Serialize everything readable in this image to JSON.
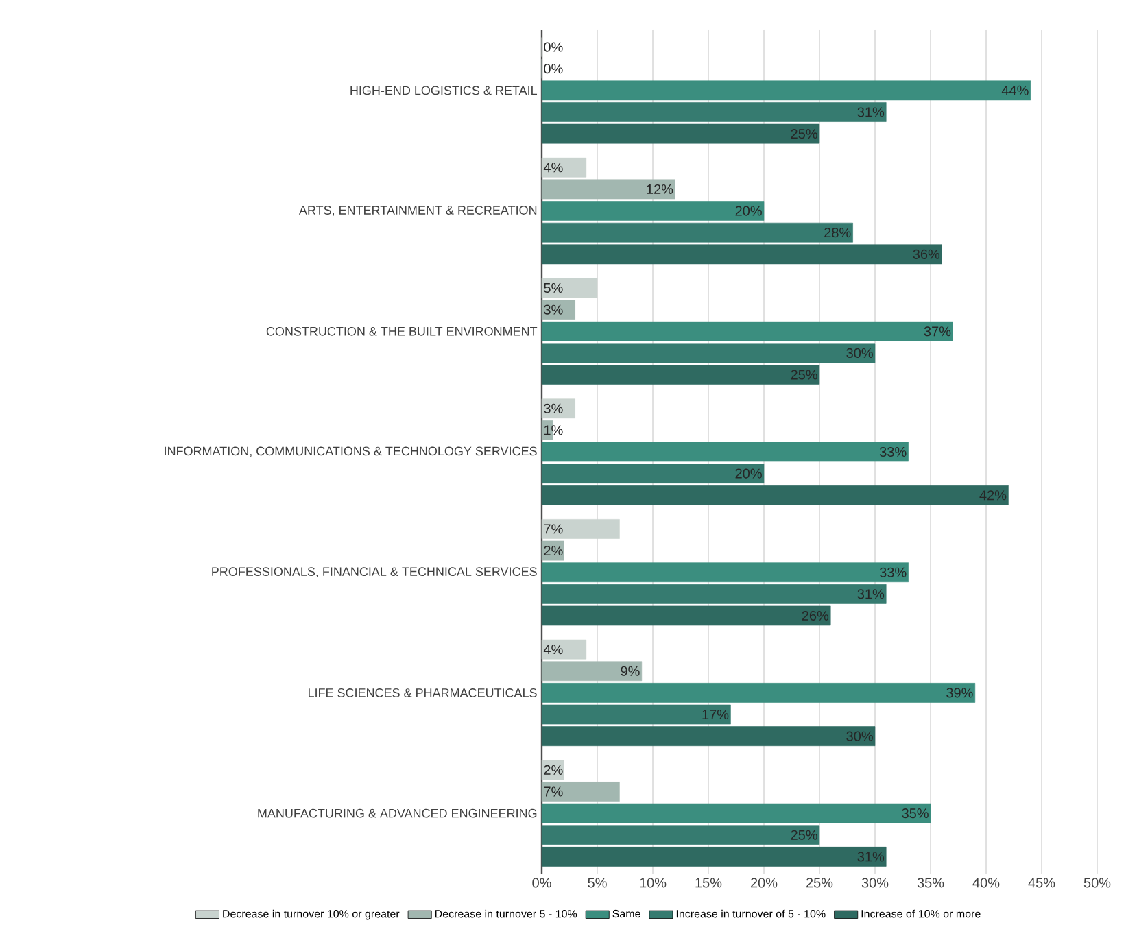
{
  "chart_data": {
    "type": "bar",
    "orientation": "horizontal",
    "categories": [
      "HIGH-END LOGISTICS & RETAIL",
      "ARTS, ENTERTAINMENT & RECREATION",
      "CONSTRUCTION & THE BUILT ENVIRONMENT",
      "INFORMATION, COMMUNICATIONS & TECHNOLOGY SERVICES",
      "PROFESSIONALS, FINANCIAL & TECHNICAL SERVICES",
      "LIFE SCIENCES & PHARMACEUTICALS",
      "MANUFACTURING & ADVANCED ENGINEERING"
    ],
    "series": [
      {
        "name": "Decrease in turnover 10% or greater",
        "color": "#c9d3cf",
        "values": [
          0,
          4,
          5,
          3,
          7,
          4,
          2
        ],
        "value_labels": [
          "0%",
          "4%",
          "5%",
          "3%",
          "7%",
          "4%",
          "2%"
        ]
      },
      {
        "name": "Decrease in turnover 5 - 10%",
        "color": "#a2b7b0",
        "values": [
          0,
          12,
          3,
          1,
          2,
          9,
          7
        ],
        "value_labels": [
          "0%",
          "12%",
          "3%",
          "1%",
          "2%",
          "9%",
          "7%"
        ]
      },
      {
        "name": "Same",
        "color": "#3b8e7f",
        "values": [
          44,
          20,
          37,
          33,
          33,
          39,
          35
        ],
        "value_labels": [
          "44%",
          "20%",
          "37%",
          "33%",
          "33%",
          "39%",
          "35%"
        ]
      },
      {
        "name": "Increase in turnover of 5 - 10%",
        "color": "#367b70",
        "values": [
          31,
          28,
          30,
          20,
          31,
          17,
          25
        ],
        "value_labels": [
          "31%",
          "28%",
          "30%",
          "20%",
          "31%",
          "17%",
          "25%"
        ]
      },
      {
        "name": "Increase of 10% or more",
        "color": "#2f6a61",
        "values": [
          25,
          36,
          25,
          42,
          26,
          30,
          31
        ],
        "value_labels": [
          "25%",
          "36%",
          "25%",
          "42%",
          "26%",
          "30%",
          "31%"
        ]
      }
    ],
    "xlim": [
      0,
      50
    ],
    "xticks": [
      {
        "value": 0,
        "label": "0%"
      },
      {
        "value": 5,
        "label": "5%"
      },
      {
        "value": 10,
        "label": "10%"
      },
      {
        "value": 15,
        "label": "15%"
      },
      {
        "value": 20,
        "label": "20%"
      },
      {
        "value": 25,
        "label": "25%"
      },
      {
        "value": 30,
        "label": "30%"
      },
      {
        "value": 35,
        "label": "35%"
      },
      {
        "value": 40,
        "label": "40%"
      },
      {
        "value": 45,
        "label": "45%"
      },
      {
        "value": 50,
        "label": "50%"
      }
    ],
    "grid": "x",
    "legend": "bottom"
  }
}
